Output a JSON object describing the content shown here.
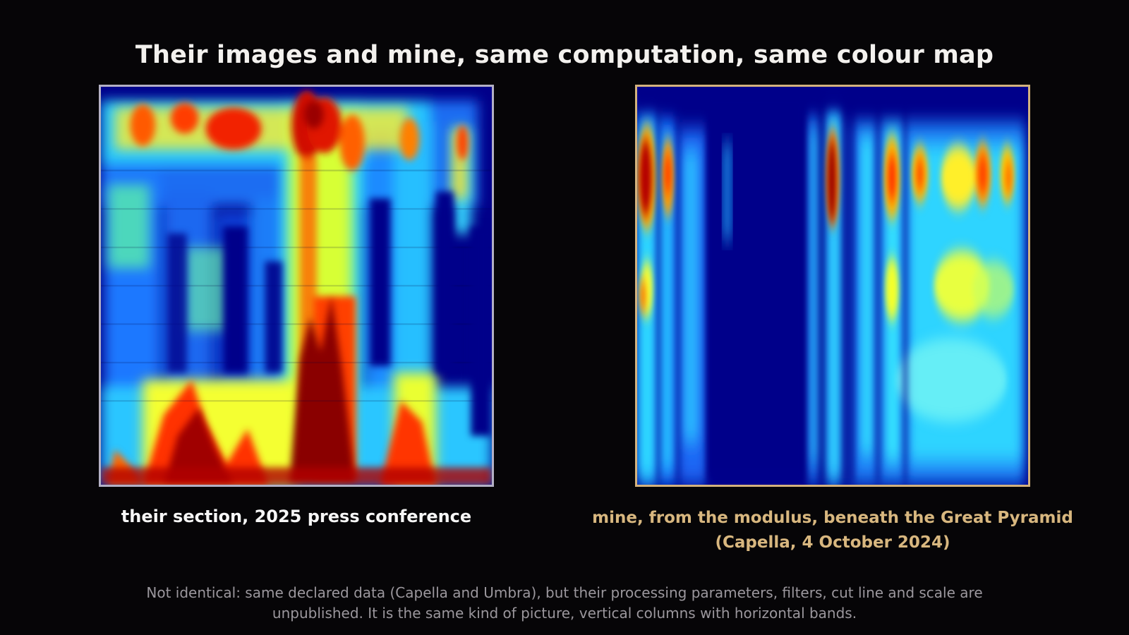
{
  "title": "Their images and mine, same computation, same colour map",
  "left_panel": {
    "caption": "their section, 2025 press conference",
    "image_icon": "jet-colormap-section-image",
    "border_color": "#b3b0c4"
  },
  "right_panel": {
    "caption_line1": "mine, from the modulus, beneath the Great Pyramid",
    "caption_line2": "(Capella, 4 October 2024)",
    "image_icon": "jet-colormap-modulus-image",
    "border_color": "#d3b27d"
  },
  "footnote": {
    "line1": "Not identical: same declared data (Capella and Umbra), but their processing parameters, filters, cut line and scale are",
    "line2": "unpublished. It is the same kind of picture, vertical columns with horizontal bands."
  },
  "colors": {
    "background": "#060507",
    "title": "#f3f1ee",
    "accent_gold": "#d8b77f",
    "footnote": "#9b979d",
    "colormap_low": "#01008a",
    "colormap_high": "#8a0000"
  }
}
